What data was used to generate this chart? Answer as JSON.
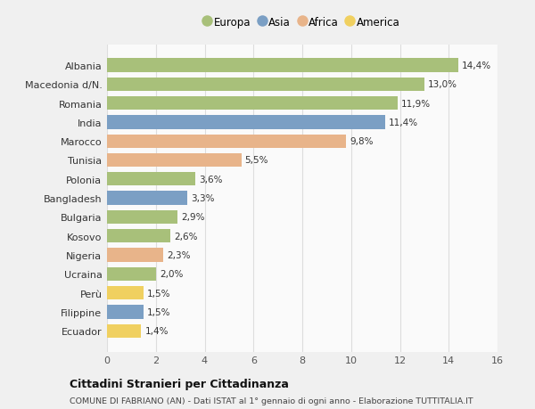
{
  "categories": [
    "Albania",
    "Macedonia d/N.",
    "Romania",
    "India",
    "Marocco",
    "Tunisia",
    "Polonia",
    "Bangladesh",
    "Bulgaria",
    "Kosovo",
    "Nigeria",
    "Ucraina",
    "Perù",
    "Filippine",
    "Ecuador"
  ],
  "values": [
    14.4,
    13.0,
    11.9,
    11.4,
    9.8,
    5.5,
    3.6,
    3.3,
    2.9,
    2.6,
    2.3,
    2.0,
    1.5,
    1.5,
    1.4
  ],
  "labels": [
    "14,4%",
    "13,0%",
    "11,9%",
    "11,4%",
    "9,8%",
    "5,5%",
    "3,6%",
    "3,3%",
    "2,9%",
    "2,6%",
    "2,3%",
    "2,0%",
    "1,5%",
    "1,5%",
    "1,4%"
  ],
  "continents": [
    "Europa",
    "Europa",
    "Europa",
    "Asia",
    "Africa",
    "Africa",
    "Europa",
    "Asia",
    "Europa",
    "Europa",
    "Africa",
    "Europa",
    "America",
    "Asia",
    "America"
  ],
  "colors": {
    "Europa": "#a8c07a",
    "Asia": "#7b9fc4",
    "Africa": "#e8b48a",
    "America": "#f0d060"
  },
  "legend_order": [
    "Europa",
    "Asia",
    "Africa",
    "America"
  ],
  "legend_colors": [
    "#a8c07a",
    "#7b9fc4",
    "#e8b48a",
    "#f0d060"
  ],
  "xlim": [
    0,
    16
  ],
  "xticks": [
    0,
    2,
    4,
    6,
    8,
    10,
    12,
    14,
    16
  ],
  "title": "Cittadini Stranieri per Cittadinanza",
  "subtitle": "COMUNE DI FABRIANO (AN) - Dati ISTAT al 1° gennaio di ogni anno - Elaborazione TUTTITALIA.IT",
  "bg_color": "#f0f0f0",
  "plot_bg_color": "#fafafa",
  "grid_color": "#dddddd"
}
